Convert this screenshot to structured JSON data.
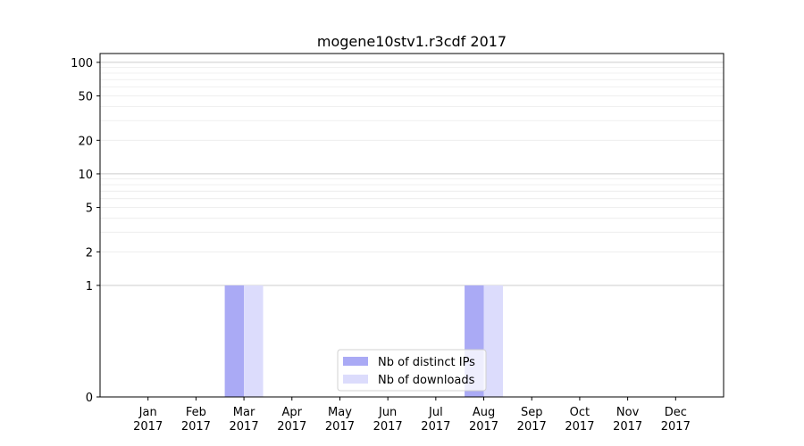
{
  "chart_data": {
    "type": "bar",
    "title": "mogene10stv1.r3cdf 2017",
    "xlabel": "",
    "ylabel": "",
    "y_scale": "symlog",
    "ylim": [
      0,
      120
    ],
    "y_ticks": [
      0,
      1,
      2,
      5,
      10,
      20,
      50,
      100
    ],
    "grid": true,
    "legend_position": "bottom-center",
    "categories": [
      {
        "month": "Jan",
        "year": "2017"
      },
      {
        "month": "Feb",
        "year": "2017"
      },
      {
        "month": "Mar",
        "year": "2017"
      },
      {
        "month": "Apr",
        "year": "2017"
      },
      {
        "month": "May",
        "year": "2017"
      },
      {
        "month": "Jun",
        "year": "2017"
      },
      {
        "month": "Jul",
        "year": "2017"
      },
      {
        "month": "Aug",
        "year": "2017"
      },
      {
        "month": "Sep",
        "year": "2017"
      },
      {
        "month": "Oct",
        "year": "2017"
      },
      {
        "month": "Nov",
        "year": "2017"
      },
      {
        "month": "Dec",
        "year": "2017"
      }
    ],
    "series": [
      {
        "name": "Nb of distinct IPs",
        "color": "#aaaaf5",
        "values": [
          0,
          0,
          1,
          0,
          0,
          0,
          0,
          1,
          0,
          0,
          0,
          0
        ]
      },
      {
        "name": "Nb of downloads",
        "color": "#dcdcfc",
        "values": [
          0,
          0,
          1,
          0,
          0,
          0,
          0,
          1,
          0,
          0,
          0,
          0
        ]
      }
    ]
  }
}
